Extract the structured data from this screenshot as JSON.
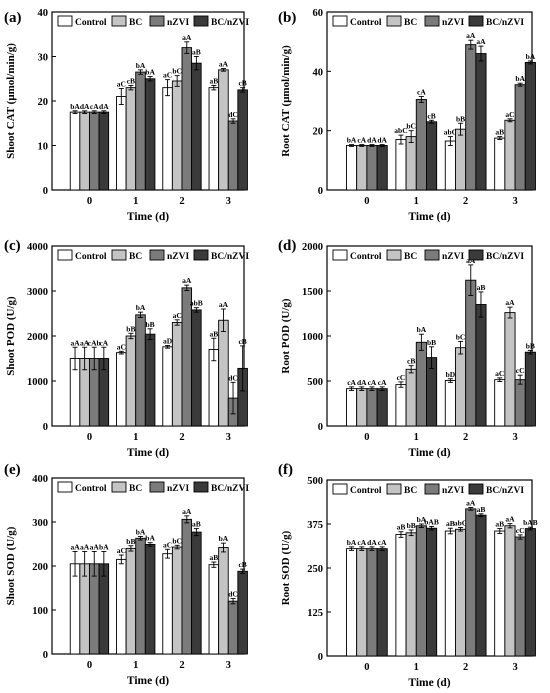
{
  "legend_labels": [
    "Control",
    "BC",
    "nZVI",
    "BC/nZVI"
  ],
  "colors": {
    "series": [
      "#ffffff",
      "#c4c4c4",
      "#7b7b7b",
      "#3a3a3a"
    ],
    "stroke": "#000000"
  },
  "chart_data": [
    {
      "panel_label": "(a)",
      "type": "bar",
      "ylabel": "Shoot CAT (μmol/min/g)",
      "xlabel": "Time (d)",
      "ylim": [
        0,
        40
      ],
      "yticks": [
        0,
        10,
        20,
        30,
        40
      ],
      "categories": [
        "0",
        "1",
        "2",
        "3"
      ],
      "series": [
        {
          "name": "Control",
          "values": [
            17.5,
            21,
            23,
            23
          ],
          "errors": [
            0.3,
            1.8,
            1.8,
            0.5
          ],
          "labels": [
            "bA",
            "aC",
            "aC",
            "aB"
          ]
        },
        {
          "name": "BC",
          "values": [
            17.5,
            23,
            24.5,
            27
          ],
          "errors": [
            0.3,
            0.5,
            1.2,
            0.3
          ],
          "labels": [
            "dA",
            "cB",
            "bC",
            "aA"
          ]
        },
        {
          "name": "nZVI",
          "values": [
            17.5,
            26.5,
            32,
            15.5
          ],
          "errors": [
            0.3,
            0.5,
            1.3,
            0.5
          ],
          "labels": [
            "cA",
            "bA",
            "aA",
            "dC"
          ]
        },
        {
          "name": "BC/nZVI",
          "values": [
            17.5,
            25,
            28.5,
            22.5
          ],
          "errors": [
            0.3,
            0.5,
            1.5,
            0.5
          ],
          "labels": [
            "dA",
            "bA",
            "aB",
            "cB"
          ]
        }
      ]
    },
    {
      "panel_label": "(b)",
      "type": "bar",
      "ylabel": "Root CAT (μmol/min/g)",
      "xlabel": "Time (d)",
      "ylim": [
        0,
        60
      ],
      "yticks": [
        0,
        20,
        40,
        60
      ],
      "categories": [
        "0",
        "1",
        "2",
        "3"
      ],
      "series": [
        {
          "name": "Control",
          "values": [
            15,
            17,
            16.5,
            17.5
          ],
          "errors": [
            0.3,
            1.5,
            1.5,
            0.5
          ],
          "labels": [
            "bA",
            "abC",
            "abC",
            "aB"
          ]
        },
        {
          "name": "BC",
          "values": [
            15,
            18,
            20.5,
            23.5
          ],
          "errors": [
            0.3,
            2,
            2,
            0.5
          ],
          "labels": [
            "cA",
            "bC",
            "bB",
            "aC"
          ]
        },
        {
          "name": "nZVI",
          "values": [
            15,
            30.5,
            49,
            35.5
          ],
          "errors": [
            0.3,
            1,
            1.5,
            0.5
          ],
          "labels": [
            "dA",
            "cA",
            "aA",
            "bA"
          ]
        },
        {
          "name": "BC/nZVI",
          "values": [
            15,
            23,
            46,
            43
          ],
          "errors": [
            0.3,
            0.5,
            2.5,
            0.5
          ],
          "labels": [
            "dA",
            "cB",
            "aA",
            "bA"
          ]
        }
      ]
    },
    {
      "panel_label": "(c)",
      "type": "bar",
      "ylabel": "Shoot POD (U/g)",
      "xlabel": "Time (d)",
      "ylim": [
        0,
        4000
      ],
      "yticks": [
        0,
        1000,
        2000,
        3000,
        4000
      ],
      "categories": [
        "0",
        "1",
        "2",
        "3"
      ],
      "series": [
        {
          "name": "Control",
          "values": [
            1500,
            1630,
            1760,
            1700
          ],
          "errors": [
            250,
            30,
            30,
            250
          ],
          "labels": [
            "aA",
            "aC",
            "aD",
            "aB"
          ]
        },
        {
          "name": "BC",
          "values": [
            1500,
            2000,
            2300,
            2350
          ],
          "errors": [
            250,
            60,
            60,
            250
          ],
          "labels": [
            "aA",
            "bB",
            "aC",
            "aA"
          ]
        },
        {
          "name": "nZVI",
          "values": [
            1500,
            2470,
            3070,
            620
          ],
          "errors": [
            250,
            60,
            60,
            350
          ],
          "labels": [
            "cAb",
            "bA",
            "aA",
            "dC"
          ]
        },
        {
          "name": "BC/nZVI",
          "values": [
            1500,
            2040,
            2580,
            1280
          ],
          "errors": [
            250,
            120,
            50,
            500
          ],
          "labels": [
            "cA",
            "bB",
            "abB",
            "cB"
          ]
        }
      ]
    },
    {
      "panel_label": "(d)",
      "type": "bar",
      "ylabel": "Root POD (U/g)",
      "xlabel": "Time (d)",
      "ylim": [
        0,
        2000
      ],
      "yticks": [
        0,
        500,
        1000,
        1500,
        2000
      ],
      "categories": [
        "0",
        "1",
        "2",
        "3"
      ],
      "series": [
        {
          "name": "Control",
          "values": [
            415,
            460,
            505,
            515
          ],
          "errors": [
            20,
            30,
            20,
            20
          ],
          "labels": [
            "cA",
            "cC",
            "bD",
            "aC"
          ]
        },
        {
          "name": "BC",
          "values": [
            415,
            630,
            870,
            1260
          ],
          "errors": [
            20,
            40,
            70,
            60
          ],
          "labels": [
            "dA",
            "cB",
            "bC",
            "aA"
          ]
        },
        {
          "name": "nZVI",
          "values": [
            415,
            930,
            1620,
            515
          ],
          "errors": [
            20,
            90,
            170,
            50
          ],
          "labels": [
            "cA",
            "bA",
            "aA",
            "cC"
          ]
        },
        {
          "name": "BC/nZVI",
          "values": [
            415,
            760,
            1350,
            820
          ],
          "errors": [
            20,
            120,
            140,
            20
          ],
          "labels": [
            "cA",
            "bB",
            "aB",
            "bB"
          ]
        }
      ]
    },
    {
      "panel_label": "(e)",
      "type": "bar",
      "ylabel": "Shoot SOD (U/g)",
      "xlabel": "Time (d)",
      "ylim": [
        0,
        400
      ],
      "yticks": [
        0,
        100,
        200,
        300,
        400
      ],
      "categories": [
        "0",
        "1",
        "2",
        "3"
      ],
      "series": [
        {
          "name": "Control",
          "values": [
            205,
            215,
            228,
            203
          ],
          "errors": [
            28,
            10,
            10,
            6
          ],
          "labels": [
            "aA",
            "aC",
            "aC",
            "aB"
          ]
        },
        {
          "name": "BC",
          "values": [
            205,
            240,
            243,
            242
          ],
          "errors": [
            28,
            6,
            4,
            10
          ],
          "labels": [
            "aA",
            "bB",
            "bC",
            "bA"
          ]
        },
        {
          "name": "nZVI",
          "values": [
            205,
            263,
            306,
            120
          ],
          "errors": [
            28,
            4,
            8,
            6
          ],
          "labels": [
            "aA",
            "bA",
            "aA",
            "dC"
          ]
        },
        {
          "name": "BC/nZVI",
          "values": [
            205,
            249,
            277,
            188
          ],
          "errors": [
            28,
            4,
            8,
            5
          ],
          "labels": [
            "bA",
            "bA",
            "aB",
            "cB"
          ]
        }
      ]
    },
    {
      "panel_label": "(f)",
      "type": "bar",
      "ylabel": "Root SOD (U/g)",
      "xlabel": "Time (d)",
      "ylim": [
        0,
        500
      ],
      "yticks": [
        0,
        125,
        250,
        375,
        500
      ],
      "categories": [
        "0",
        "1",
        "2",
        "3"
      ],
      "series": [
        {
          "name": "Control",
          "values": [
            305,
            345,
            355,
            355
          ],
          "errors": [
            5,
            8,
            8,
            7
          ],
          "labels": [
            "bA",
            "aB",
            "aB",
            "aB"
          ]
        },
        {
          "name": "BC",
          "values": [
            305,
            350,
            360,
            370
          ],
          "errors": [
            5,
            8,
            5,
            6
          ],
          "labels": [
            "cA",
            "bB",
            "abC",
            "aA"
          ]
        },
        {
          "name": "nZVI",
          "values": [
            305,
            370,
            418,
            338
          ],
          "errors": [
            5,
            5,
            4,
            6
          ],
          "labels": [
            "dA",
            "bA",
            "aA",
            "cC"
          ]
        },
        {
          "name": "BC/nZVI",
          "values": [
            305,
            363,
            400,
            362
          ],
          "errors": [
            5,
            5,
            4,
            4
          ],
          "labels": [
            "cA",
            "bAB",
            "aB",
            "bAB"
          ]
        }
      ]
    }
  ]
}
